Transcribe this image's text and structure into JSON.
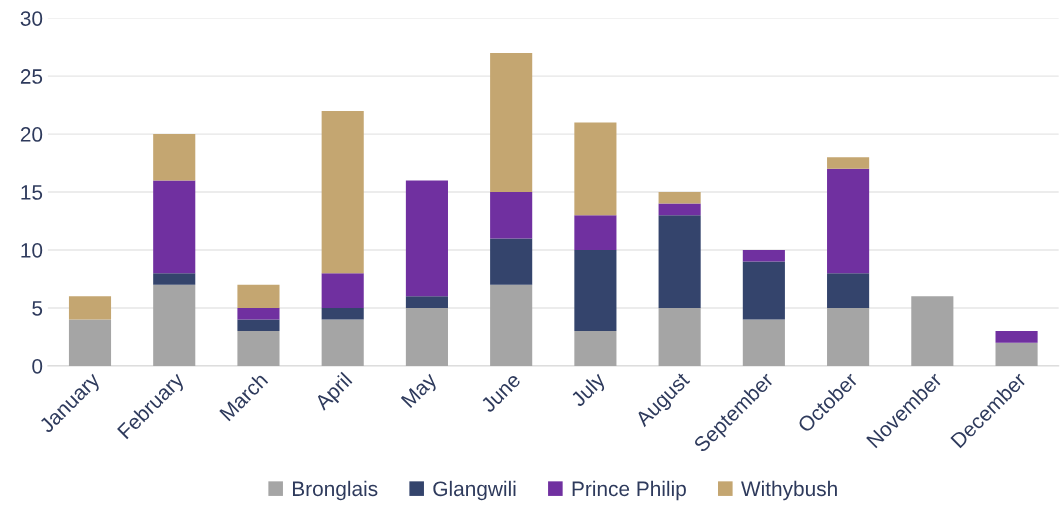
{
  "chart_data": {
    "type": "bar",
    "stacked": true,
    "categories": [
      "January",
      "February",
      "March",
      "April",
      "May",
      "June",
      "July",
      "August",
      "September",
      "October",
      "November",
      "December"
    ],
    "series": [
      {
        "name": "Bronglais",
        "color": "#a5a5a5",
        "values": [
          4,
          7,
          3,
          4,
          5,
          7,
          3,
          5,
          4,
          5,
          6,
          2
        ]
      },
      {
        "name": "Glangwili",
        "color": "#34446c",
        "values": [
          0,
          1,
          1,
          1,
          1,
          4,
          7,
          8,
          5,
          3,
          0,
          0
        ]
      },
      {
        "name": "Prince Philip",
        "color": "#7030a0",
        "values": [
          0,
          8,
          1,
          3,
          10,
          4,
          3,
          1,
          1,
          9,
          0,
          1
        ]
      },
      {
        "name": "Withybush",
        "color": "#c4a671",
        "values": [
          2,
          4,
          2,
          14,
          0,
          12,
          8,
          1,
          0,
          1,
          0,
          0
        ]
      }
    ],
    "ylim": [
      0,
      30
    ],
    "yticks": [
      0,
      5,
      10,
      15,
      20,
      25,
      30
    ],
    "grid": "y",
    "legend": "bottom"
  }
}
